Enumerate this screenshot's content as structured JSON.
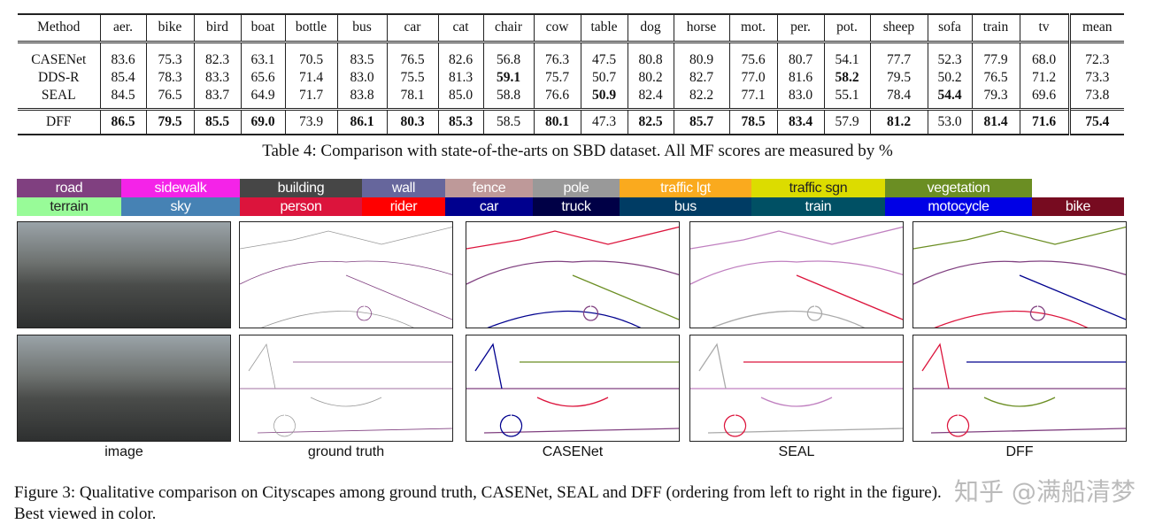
{
  "table": {
    "columns": [
      "Method",
      "aer.",
      "bike",
      "bird",
      "boat",
      "bottle",
      "bus",
      "car",
      "cat",
      "chair",
      "cow",
      "table",
      "dog",
      "horse",
      "mot.",
      "per.",
      "pot.",
      "sheep",
      "sofa",
      "train",
      "tv",
      "mean"
    ],
    "rows": [
      {
        "method": "CASENet",
        "values": [
          "83.6",
          "75.3",
          "82.3",
          "63.1",
          "70.5",
          "83.5",
          "76.5",
          "82.6",
          "56.8",
          "76.3",
          "47.5",
          "80.8",
          "80.9",
          "75.6",
          "80.7",
          "54.1",
          "77.7",
          "52.3",
          "77.9",
          "68.0",
          "72.3"
        ],
        "bold": []
      },
      {
        "method": "DDS-R",
        "values": [
          "85.4",
          "78.3",
          "83.3",
          "65.6",
          "71.4",
          "83.0",
          "75.5",
          "81.3",
          "59.1",
          "75.7",
          "50.7",
          "80.2",
          "82.7",
          "77.0",
          "81.6",
          "58.2",
          "79.5",
          "50.2",
          "76.5",
          "71.2",
          "73.3"
        ],
        "bold": [
          8,
          15
        ]
      },
      {
        "method": "SEAL",
        "values": [
          "84.5",
          "76.5",
          "83.7",
          "64.9",
          "71.7",
          "83.8",
          "78.1",
          "85.0",
          "58.8",
          "76.6",
          "50.9",
          "82.4",
          "82.2",
          "77.1",
          "83.0",
          "55.1",
          "78.4",
          "54.4",
          "79.3",
          "69.6",
          "73.8"
        ],
        "bold": [
          10,
          17
        ]
      },
      {
        "method": "DFF",
        "values": [
          "86.5",
          "79.5",
          "85.5",
          "69.0",
          "73.9",
          "86.1",
          "80.3",
          "85.3",
          "58.5",
          "80.1",
          "47.3",
          "82.5",
          "85.7",
          "78.5",
          "83.4",
          "57.9",
          "81.2",
          "53.0",
          "81.4",
          "71.6",
          "75.4"
        ],
        "bold": [
          0,
          1,
          2,
          3,
          5,
          6,
          7,
          9,
          11,
          12,
          13,
          14,
          16,
          18,
          19,
          20
        ]
      }
    ],
    "caption": "Table 4: Comparison with state-of-the-arts on SBD dataset. All MF scores are measured by %"
  },
  "legend": {
    "row1": [
      {
        "label": "road",
        "color": "#804080"
      },
      {
        "label": "sidewalk",
        "color": "#f423e8"
      },
      {
        "label": "building",
        "color": "#464646"
      },
      {
        "label": "wall",
        "color": "#66669c"
      },
      {
        "label": "fence",
        "color": "#be9999"
      },
      {
        "label": "pole",
        "color": "#999999"
      },
      {
        "label": "traffic lgt",
        "color": "#faaa1e"
      },
      {
        "label": "traffic sgn",
        "color": "#dcdc00"
      },
      {
        "label": "vegetation",
        "color": "#6b8e23"
      }
    ],
    "row2": [
      {
        "label": "terrain",
        "color": "#98fb98"
      },
      {
        "label": "sky",
        "color": "#4682b4"
      },
      {
        "label": "person",
        "color": "#dc143c"
      },
      {
        "label": "rider",
        "color": "#ff0000"
      },
      {
        "label": "car",
        "color": "#00008e"
      },
      {
        "label": "truck",
        "color": "#000046"
      },
      {
        "label": "bus",
        "color": "#003c64"
      },
      {
        "label": "train",
        "color": "#005064"
      },
      {
        "label": "motocycle",
        "color": "#0000e6"
      },
      {
        "label": "bike",
        "color": "#770b20"
      }
    ]
  },
  "figure": {
    "columns": [
      "image",
      "ground truth",
      "CASENet",
      "SEAL",
      "DFF"
    ],
    "caption": "Figure 3: Qualitative comparison on Cityscapes among ground truth, CASENet, SEAL and DFF (ordering from left to right in the figure). Best viewed in color.",
    "watermark": "知乎 @满船清梦"
  }
}
